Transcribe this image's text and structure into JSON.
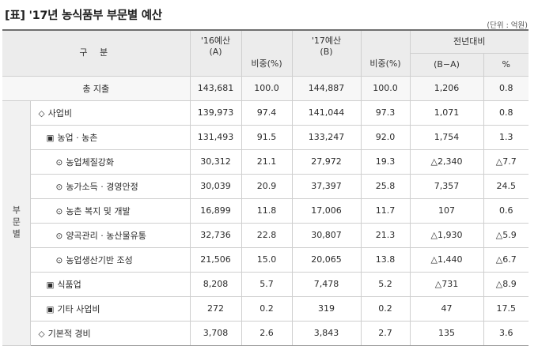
{
  "title": "[표] '17년 농식품부 부문별 예산",
  "unit": "(단위 : 억원)",
  "header": {
    "col_category": "구  분",
    "col_2016": "'16예산\n(A)",
    "col_share1": "비중(%)",
    "col_2017": "'17예산\n(B)",
    "col_share2": "비중(%)",
    "col_change": "전년대비",
    "col_diff": "(B−A)",
    "col_pct": "%"
  },
  "group_label": "부문별",
  "total": {
    "label": "총 지출",
    "v2016": "143,681",
    "s2016": "100.0",
    "v2017": "144,887",
    "s2017": "100.0",
    "diff": "1,206",
    "pct": "0.8"
  },
  "rows": [
    {
      "marker": "◇",
      "label": "사업비",
      "v2016": "139,973",
      "s2016": "97.4",
      "v2017": "141,044",
      "s2017": "97.3",
      "diff": "1,071",
      "pct": "0.8"
    },
    {
      "marker": "▣",
      "label": "농업 · 농촌",
      "v2016": "131,493",
      "s2016": "91.5",
      "v2017": "133,247",
      "s2017": "92.0",
      "diff": "1,754",
      "pct": "1.3"
    },
    {
      "marker": "⊙",
      "label": "농업체질강화",
      "v2016": "30,312",
      "s2016": "21.1",
      "v2017": "27,972",
      "s2017": "19.3",
      "diff": "△2,340",
      "pct": "△7.7"
    },
    {
      "marker": "⊙",
      "label": "농가소득 · 경영안정",
      "v2016": "30,039",
      "s2016": "20.9",
      "v2017": "37,397",
      "s2017": "25.8",
      "diff": "7,357",
      "pct": "24.5"
    },
    {
      "marker": "⊙",
      "label": "농촌 복지 및 개발",
      "v2016": "16,899",
      "s2016": "11.8",
      "v2017": "17,006",
      "s2017": "11.7",
      "diff": "107",
      "pct": "0.6"
    },
    {
      "marker": "⊙",
      "label": "양곡관리 · 농산물유통",
      "v2016": "32,736",
      "s2016": "22.8",
      "v2017": "30,807",
      "s2017": "21.3",
      "diff": "△1,930",
      "pct": "△5.9"
    },
    {
      "marker": "⊙",
      "label": "농업생산기반 조성",
      "v2016": "21,506",
      "s2016": "15.0",
      "v2017": "20,065",
      "s2017": "13.8",
      "diff": "△1,440",
      "pct": "△6.7"
    },
    {
      "marker": "▣",
      "label": "식품업",
      "v2016": "8,208",
      "s2016": "5.7",
      "v2017": "7,478",
      "s2017": "5.2",
      "diff": "△731",
      "pct": "△8.9"
    },
    {
      "marker": "▣",
      "label": "기타 사업비",
      "v2016": "272",
      "s2016": "0.2",
      "v2017": "319",
      "s2017": "0.2",
      "diff": "47",
      "pct": "17.5"
    },
    {
      "marker": "◇",
      "label": "기본적 경비",
      "v2016": "3,708",
      "s2016": "2.6",
      "v2017": "3,843",
      "s2017": "2.7",
      "diff": "135",
      "pct": "3.6"
    }
  ]
}
